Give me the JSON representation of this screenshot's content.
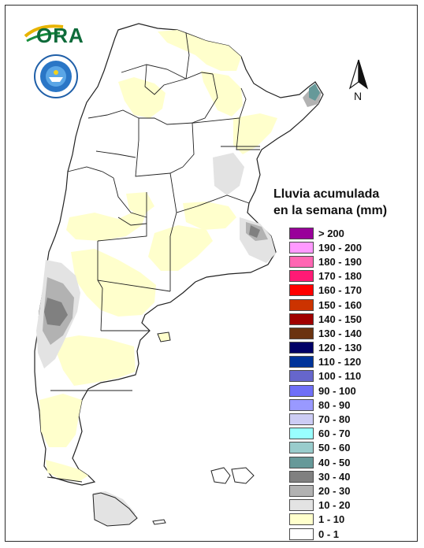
{
  "logos": {
    "ora": "ORA",
    "smn": "SERVICIO METEOROLÓGICO NACIONAL - ARGENTINA"
  },
  "north_arrow": {
    "label": "N",
    "icon": "north-arrow-icon"
  },
  "legend": {
    "title_line1": "Lluvia acumulada",
    "title_line2": "en la semana (mm)",
    "classes": [
      {
        "label": "> 200",
        "color": "#99009a"
      },
      {
        "label": "190 - 200",
        "color": "#ff99ff"
      },
      {
        "label": "180 - 190",
        "color": "#ff66b3"
      },
      {
        "label": "170 - 180",
        "color": "#ff1a75"
      },
      {
        "label": "160 - 170",
        "color": "#ff0000"
      },
      {
        "label": "150 - 160",
        "color": "#cc3300"
      },
      {
        "label": "140 - 150",
        "color": "#a00000"
      },
      {
        "label": "130 - 140",
        "color": "#6b3310"
      },
      {
        "label": "120 - 130",
        "color": "#000066"
      },
      {
        "label": "110 - 120",
        "color": "#003399"
      },
      {
        "label": "100 - 110",
        "color": "#6666cc"
      },
      {
        "label": "90 - 100",
        "color": "#6f6ff7"
      },
      {
        "label": "80 - 90",
        "color": "#9999ff"
      },
      {
        "label": "70 - 80",
        "color": "#ccccf5"
      },
      {
        "label": "60 - 70",
        "color": "#99ffff"
      },
      {
        "label": "50 - 60",
        "color": "#99cccc"
      },
      {
        "label": "40 - 50",
        "color": "#669999"
      },
      {
        "label": "30 - 40",
        "color": "#808080"
      },
      {
        "label": "20 - 30",
        "color": "#b2b2b2"
      },
      {
        "label": "10 - 20",
        "color": "#e3e3e3"
      },
      {
        "label": "1 - 10",
        "color": "#ffffcc"
      },
      {
        "label": "0 - 1",
        "color": "#ffffff"
      }
    ]
  },
  "map_colors": {
    "background": "#ffffff",
    "borders": "#222222"
  }
}
